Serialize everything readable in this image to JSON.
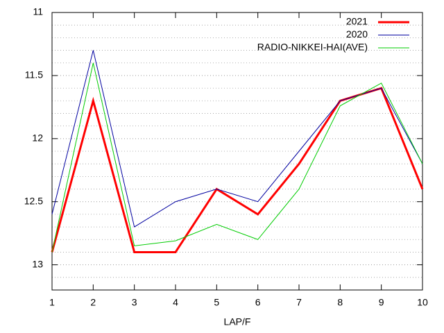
{
  "chart_data": {
    "type": "line",
    "x": [
      1,
      2,
      3,
      4,
      5,
      6,
      7,
      8,
      9,
      10
    ],
    "xlabel": "LAP/F",
    "xlim": [
      1,
      10
    ],
    "xticks": [
      1,
      2,
      3,
      4,
      5,
      6,
      7,
      8,
      9,
      10
    ],
    "ylim": [
      11,
      13.2
    ],
    "yticks": [
      11,
      11.5,
      12,
      12.5,
      13
    ],
    "y_reversed": true,
    "grid": true,
    "legend": "top-right",
    "series": [
      {
        "name": "2021",
        "color": "#ff0000",
        "width": 3,
        "values": [
          12.9,
          11.7,
          12.9,
          12.9,
          12.4,
          12.6,
          12.2,
          11.7,
          11.6,
          12.4
        ]
      },
      {
        "name": "2020",
        "color": "#0000a0",
        "width": 1,
        "values": [
          12.6,
          11.3,
          12.7,
          12.5,
          12.4,
          12.5,
          12.1,
          11.7,
          11.6,
          12.2
        ]
      },
      {
        "name": "RADIO-NIKKEI-HAI(AVE)",
        "color": "#00cc00",
        "width": 1,
        "values": [
          12.9,
          11.4,
          12.85,
          12.81,
          12.68,
          12.8,
          12.4,
          11.74,
          11.56,
          12.2
        ]
      }
    ]
  }
}
